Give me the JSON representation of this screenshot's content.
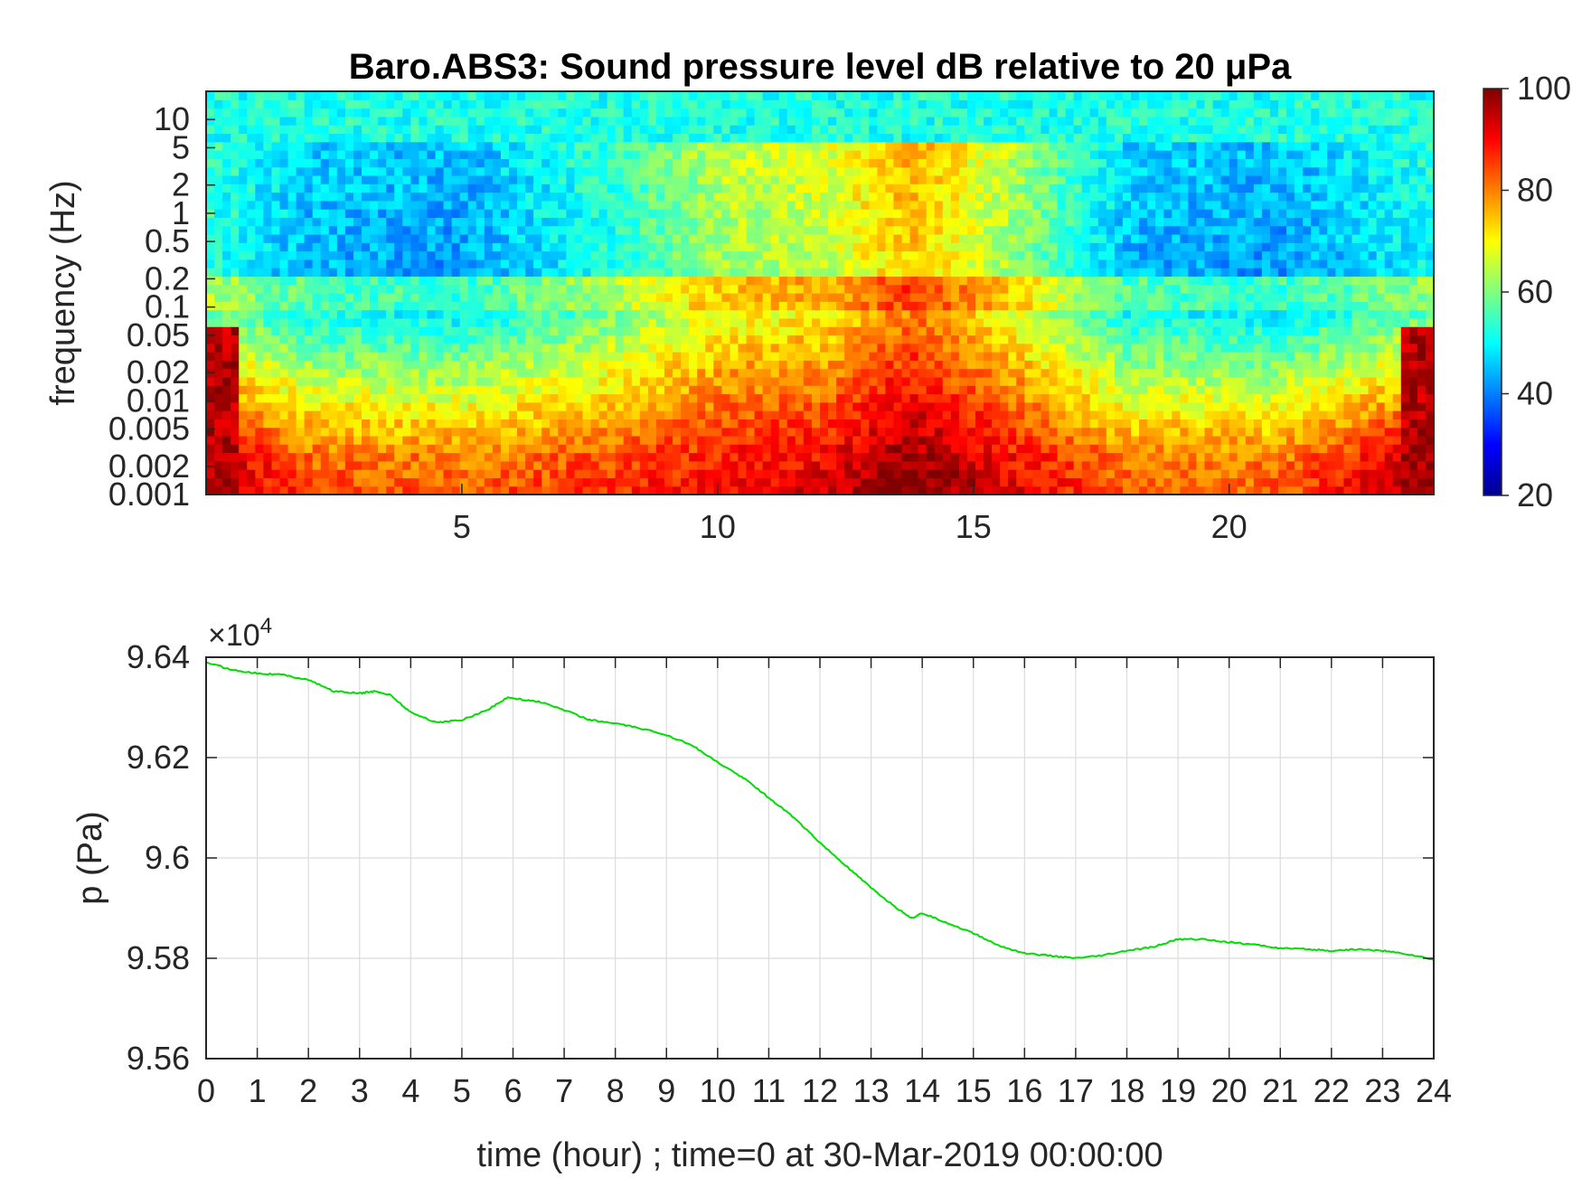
{
  "figure": {
    "title": "Baro.ABS3: Sound pressure level dB relative to 20 μPa"
  },
  "chart_data": [
    {
      "type": "heatmap",
      "title": "Baro.ABS3: Sound pressure level dB relative to 20 μPa",
      "ylabel": "frequency (Hz)",
      "xlabel": "",
      "x_range": [
        0,
        24
      ],
      "x_ticks": [
        5,
        10,
        15,
        20
      ],
      "y_scale": "log",
      "y_range": [
        0.001,
        20
      ],
      "y_ticks": [
        0.001,
        0.002,
        0.005,
        0.01,
        0.02,
        0.05,
        0.1,
        0.2,
        0.5,
        1,
        2,
        5,
        10
      ],
      "y_tick_labels": [
        "0.001",
        "0.002",
        "0.005",
        "0.01",
        "0.02",
        "0.05",
        "0.1",
        "0.2",
        "0.5",
        "1",
        "2",
        "5",
        "10"
      ],
      "colorbar": {
        "colormap": "jet",
        "range": [
          20,
          100
        ],
        "ticks": [
          20,
          40,
          60,
          80,
          100
        ]
      },
      "level_profile_db": [
        {
          "hour": 0,
          "low_freq_db": 95,
          "mid_freq_db": 58
        },
        {
          "hour": 2,
          "low_freq_db": 82,
          "mid_freq_db": 50
        },
        {
          "hour": 5,
          "low_freq_db": 80,
          "mid_freq_db": 48
        },
        {
          "hour": 8,
          "low_freq_db": 84,
          "mid_freq_db": 58
        },
        {
          "hour": 10,
          "low_freq_db": 88,
          "mid_freq_db": 68
        },
        {
          "hour": 12,
          "low_freq_db": 90,
          "mid_freq_db": 70
        },
        {
          "hour": 13.8,
          "low_freq_db": 98,
          "mid_freq_db": 80
        },
        {
          "hour": 16,
          "low_freq_db": 88,
          "mid_freq_db": 66
        },
        {
          "hour": 18,
          "low_freq_db": 80,
          "mid_freq_db": 50
        },
        {
          "hour": 21,
          "low_freq_db": 80,
          "mid_freq_db": 48
        },
        {
          "hour": 24,
          "low_freq_db": 95,
          "mid_freq_db": 56
        }
      ]
    },
    {
      "type": "line",
      "title": "",
      "xlabel": "time (hour) ; time=0 at 30-Mar-2019 00:00:00",
      "ylabel": "p (Pa)",
      "x_range": [
        0,
        24
      ],
      "x_ticks": [
        0,
        1,
        2,
        3,
        4,
        5,
        6,
        7,
        8,
        9,
        10,
        11,
        12,
        13,
        14,
        15,
        16,
        17,
        18,
        19,
        20,
        21,
        22,
        23,
        24
      ],
      "y_range": [
        95600,
        96400
      ],
      "y_ticks": [
        95600,
        95800,
        96000,
        96200,
        96400
      ],
      "y_tick_labels": [
        "9.56",
        "9.58",
        "9.6",
        "9.62",
        "9.64"
      ],
      "y_exponent_label": "×10",
      "y_exponent": "4",
      "grid": true,
      "color": "#00dd00",
      "series": [
        {
          "x": [
            0,
            0.5,
            1,
            1.5,
            2,
            2.5,
            3,
            3.3,
            3.6,
            4,
            4.5,
            5,
            5.5,
            5.9,
            6.2,
            6.5,
            7,
            7.5,
            8,
            8.5,
            9,
            9.5,
            10,
            10.5,
            11,
            11.5,
            12,
            12.5,
            13,
            13.5,
            13.8,
            14,
            14.5,
            15,
            15.5,
            16,
            16.5,
            17,
            17.5,
            18,
            18.5,
            19,
            19.5,
            20,
            20.5,
            21,
            21.5,
            22,
            22.5,
            23,
            23.5,
            24
          ],
          "y": [
            96390,
            96375,
            96368,
            96365,
            96355,
            96332,
            96328,
            96332,
            96325,
            96290,
            96270,
            96275,
            96295,
            96320,
            96315,
            96312,
            96295,
            96275,
            96268,
            96258,
            96245,
            96225,
            96190,
            96160,
            96120,
            96080,
            96030,
            95985,
            95940,
            95900,
            95880,
            95890,
            95870,
            95850,
            95825,
            95810,
            95805,
            95800,
            95805,
            95815,
            95822,
            95838,
            95838,
            95832,
            95827,
            95820,
            95818,
            95815,
            95818,
            95815,
            95808,
            95797
          ]
        }
      ]
    }
  ]
}
